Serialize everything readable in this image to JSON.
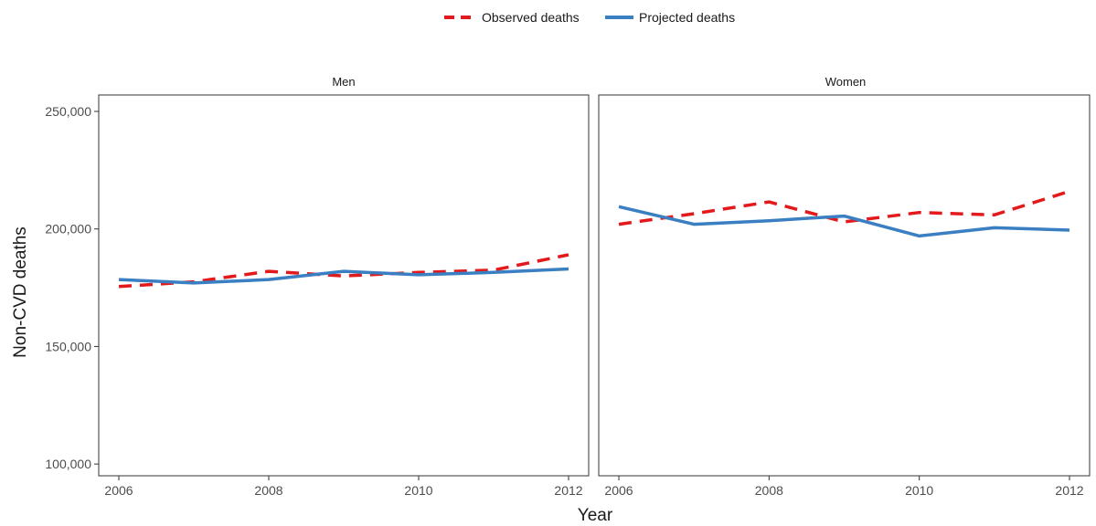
{
  "legend": {
    "items": [
      {
        "label": "Observed deaths",
        "color": "#e31a1c",
        "style": "dashed"
      },
      {
        "label": "Projected deaths",
        "color": "#3a7fc1",
        "style": "solid"
      }
    ],
    "placement": "top-center"
  },
  "chart_data": {
    "type": "line",
    "xlabel": "Year",
    "ylabel": "Non-CVD deaths",
    "xlim": [
      2006,
      2012
    ],
    "ylim": [
      95000,
      257000
    ],
    "x_ticks": [
      2006,
      2008,
      2010,
      2012
    ],
    "y_ticks": [
      100000,
      150000,
      200000,
      250000
    ],
    "y_tick_labels": [
      "100,000",
      "150,000",
      "200,000",
      "250,000"
    ],
    "x_tick_labels": [
      "2006",
      "2008",
      "2010",
      "2012"
    ],
    "grid": false,
    "facets": [
      {
        "title": "Men",
        "x": [
          2006,
          2007,
          2008,
          2009,
          2010,
          2011,
          2012
        ],
        "series": [
          {
            "name": "Observed deaths",
            "values": [
              175500,
              177500,
              182000,
              180000,
              181500,
              182500,
              189000
            ]
          },
          {
            "name": "Projected deaths",
            "values": [
              178500,
              177000,
              178500,
              182000,
              180500,
              181500,
              183000
            ]
          }
        ]
      },
      {
        "title": "Women",
        "x": [
          2006,
          2007,
          2008,
          2009,
          2010,
          2011,
          2012
        ],
        "series": [
          {
            "name": "Observed deaths",
            "values": [
              202000,
              206500,
              211500,
              203000,
              207000,
              206000,
              216000
            ]
          },
          {
            "name": "Projected deaths",
            "values": [
              209500,
              202000,
              203500,
              205500,
              197000,
              200500,
              199500
            ]
          }
        ]
      }
    ]
  }
}
